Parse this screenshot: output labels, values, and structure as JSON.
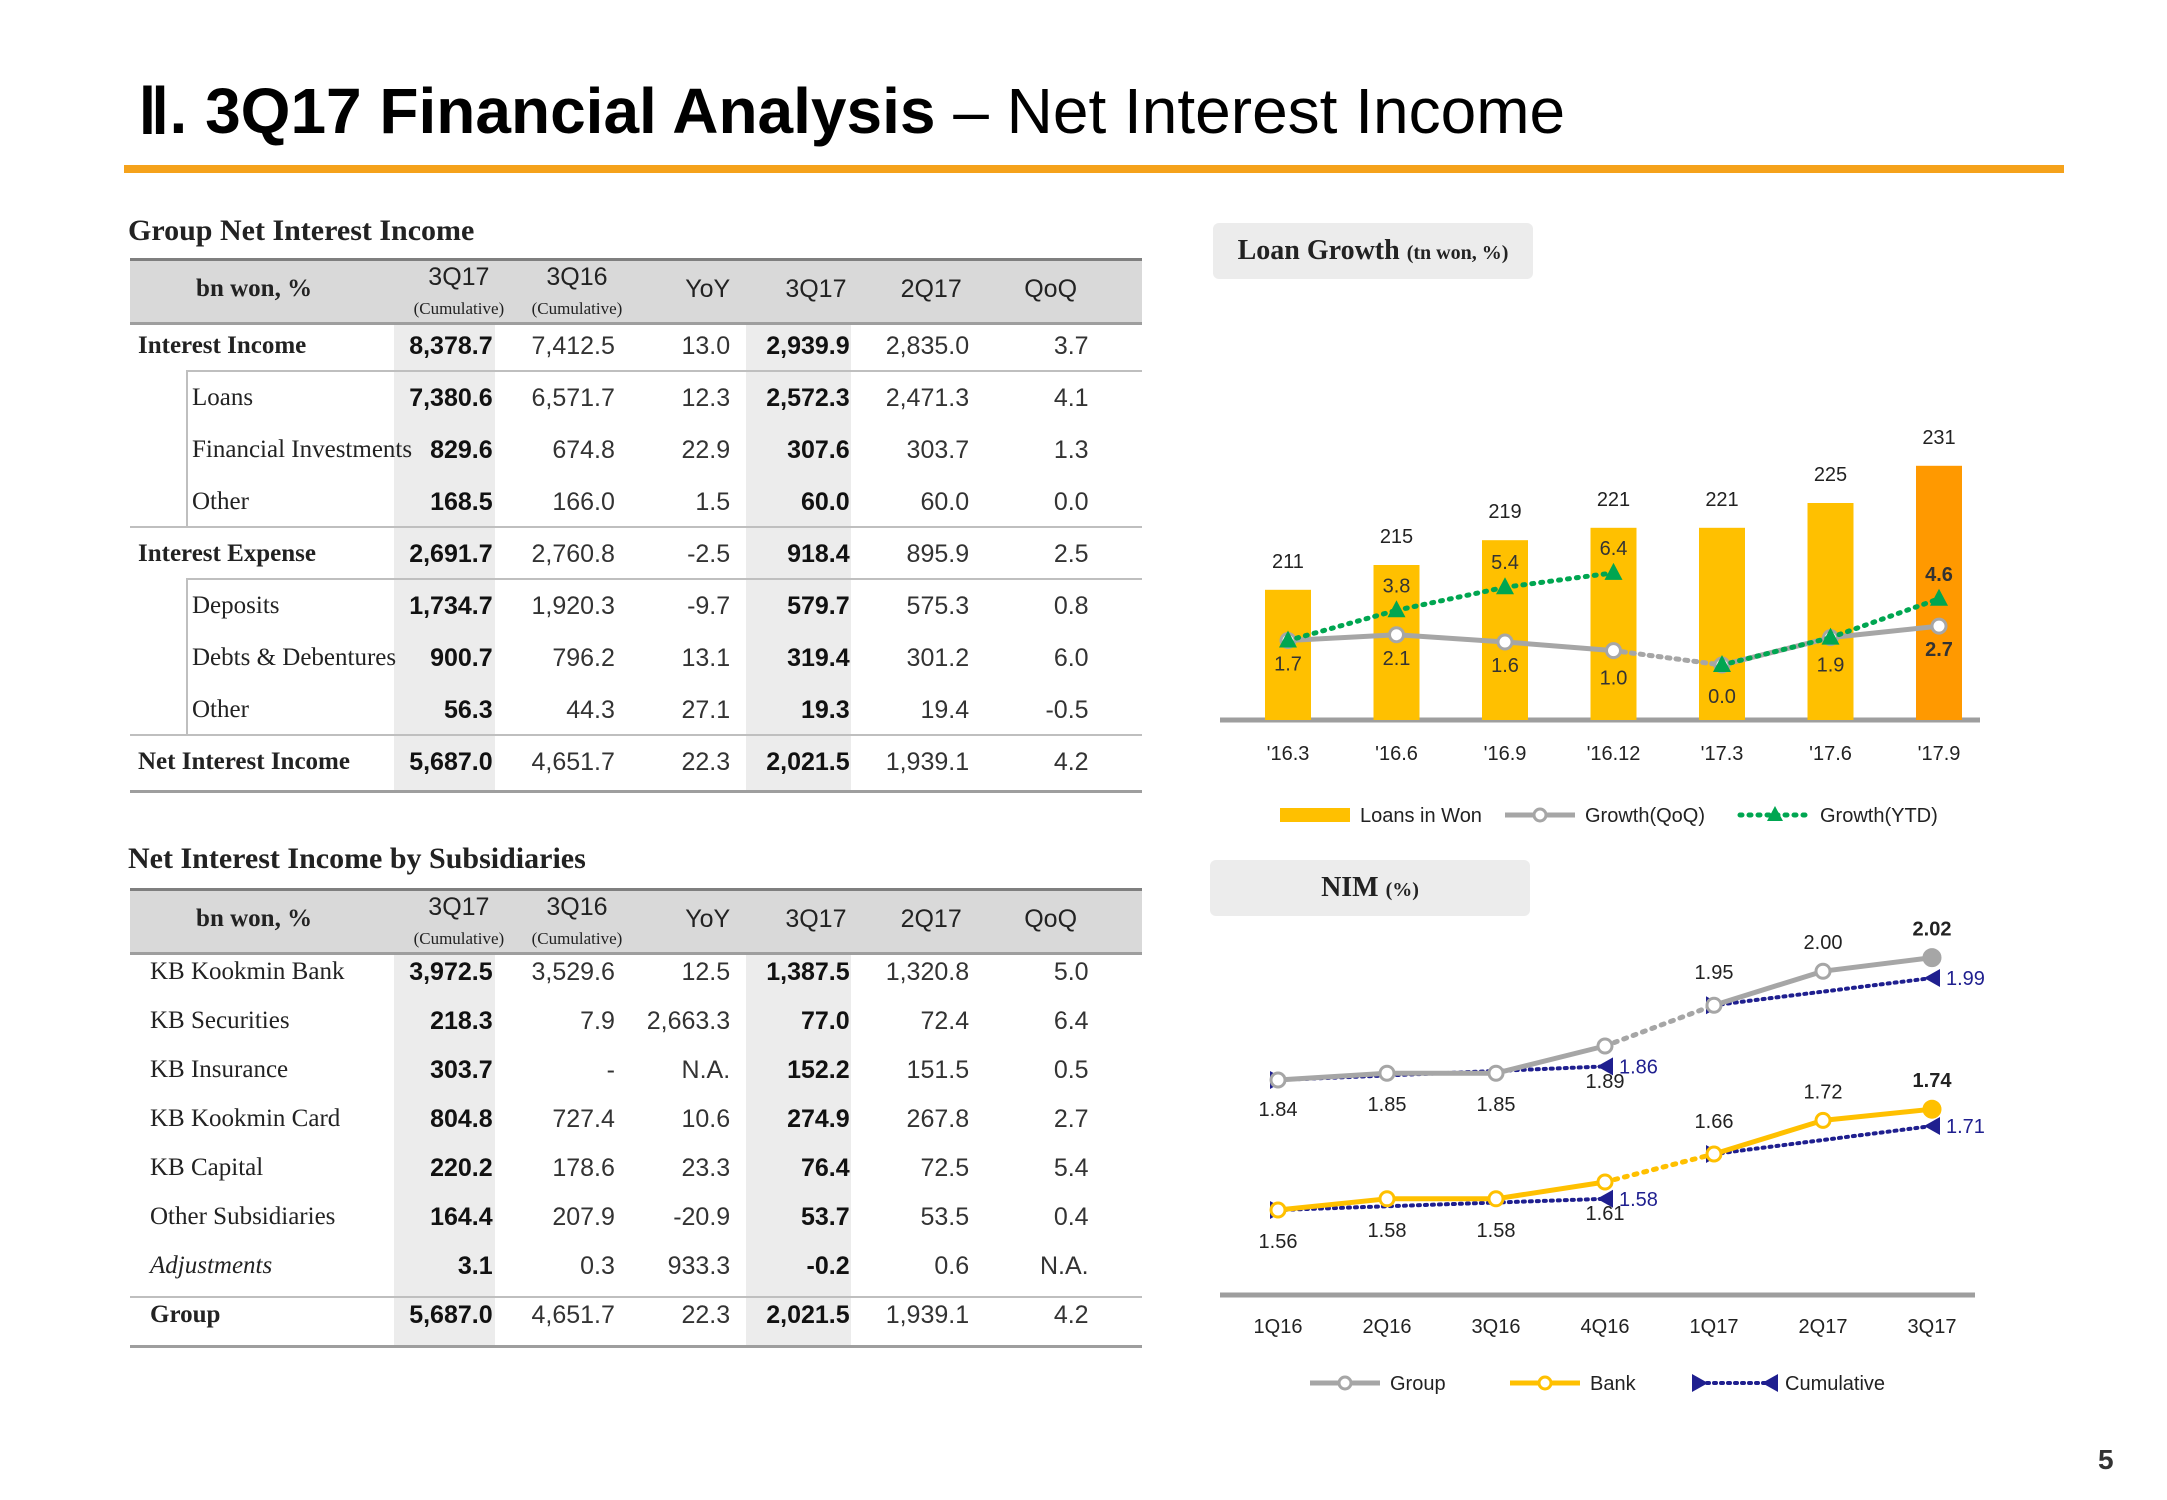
{
  "header": {
    "title_bold": "Ⅱ. 3Q17 Financial Analysis",
    "title_rest": " – Net Interest Income",
    "page_number": "5",
    "accent_color": "#f5a21b"
  },
  "group_nii": {
    "title": "Group Net Interest Income",
    "unit": "bn won, %",
    "columns": [
      "3Q17",
      "3Q16",
      "YoY",
      "3Q17",
      "2Q17",
      "QoQ"
    ],
    "column_notes": [
      "(Cumulative)",
      "(Cumulative)"
    ],
    "rows": [
      {
        "label": "Interest Income",
        "values": [
          "8,378.7",
          "7,412.5",
          "13.0",
          "2,939.9",
          "2,835.0",
          "3.7"
        ]
      },
      {
        "label": "Loans",
        "values": [
          "7,380.6",
          "6,571.7",
          "12.3",
          "2,572.3",
          "2,471.3",
          "4.1"
        ]
      },
      {
        "label": "Financial Investments",
        "values": [
          "829.6",
          "674.8",
          "22.9",
          "307.6",
          "303.7",
          "1.3"
        ]
      },
      {
        "label": "Other",
        "values": [
          "168.5",
          "166.0",
          "1.5",
          "60.0",
          "60.0",
          "0.0"
        ]
      },
      {
        "label": "Interest Expense",
        "values": [
          "2,691.7",
          "2,760.8",
          "-2.5",
          "918.4",
          "895.9",
          "2.5"
        ]
      },
      {
        "label": "Deposits",
        "values": [
          "1,734.7",
          "1,920.3",
          "-9.7",
          "579.7",
          "575.3",
          "0.8"
        ]
      },
      {
        "label": "Debts & Debentures",
        "values": [
          "900.7",
          "796.2",
          "13.1",
          "319.4",
          "301.2",
          "6.0"
        ]
      },
      {
        "label": "Other",
        "values": [
          "56.3",
          "44.3",
          "27.1",
          "19.3",
          "19.4",
          "-0.5"
        ]
      },
      {
        "label": "Net Interest Income",
        "values": [
          "5,687.0",
          "4,651.7",
          "22.3",
          "2,021.5",
          "1,939.1",
          "4.2"
        ]
      }
    ]
  },
  "subs_nii": {
    "title": "Net Interest Income by Subsidiaries",
    "unit": "bn won, %",
    "columns": [
      "3Q17",
      "3Q16",
      "YoY",
      "3Q17",
      "2Q17",
      "QoQ"
    ],
    "column_notes": [
      "(Cumulative)",
      "(Cumulative)"
    ],
    "rows": [
      {
        "label": "KB Kookmin Bank",
        "values": [
          "3,972.5",
          "3,529.6",
          "12.5",
          "1,387.5",
          "1,320.8",
          "5.0"
        ]
      },
      {
        "label": "KB Securities",
        "values": [
          "218.3",
          "7.9",
          "2,663.3",
          "77.0",
          "72.4",
          "6.4"
        ]
      },
      {
        "label": "KB Insurance",
        "values": [
          "303.7",
          "-",
          "N.A.",
          "152.2",
          "151.5",
          "0.5"
        ]
      },
      {
        "label": "KB Kookmin Card",
        "values": [
          "804.8",
          "727.4",
          "10.6",
          "274.9",
          "267.8",
          "2.7"
        ]
      },
      {
        "label": "KB Capital",
        "values": [
          "220.2",
          "178.6",
          "23.3",
          "76.4",
          "72.5",
          "5.4"
        ]
      },
      {
        "label": "Other Subsidiaries",
        "values": [
          "164.4",
          "207.9",
          "-20.9",
          "53.7",
          "53.5",
          "0.4"
        ]
      },
      {
        "label": "Adjustments",
        "values": [
          "3.1",
          "0.3",
          "933.3",
          "-0.2",
          "0.6",
          "N.A."
        ]
      },
      {
        "label": "Group",
        "values": [
          "5,687.0",
          "4,651.7",
          "22.3",
          "2,021.5",
          "1,939.1",
          "4.2"
        ]
      }
    ]
  },
  "chart_data": [
    {
      "type": "bar",
      "title": "Loan Growth",
      "unit": "(tn won, %)",
      "categories": [
        "'16.3",
        "'16.6",
        "'16.9",
        "'16.12",
        "'17.3",
        "'17.6",
        "'17.9"
      ],
      "series": [
        {
          "name": "Loans in Won",
          "type": "bar",
          "values": [
            211,
            215,
            219,
            221,
            221,
            225,
            231
          ],
          "color": "#ffc000",
          "highlight_color": "#ff9900"
        },
        {
          "name": "Growth(QoQ)",
          "type": "line",
          "values": [
            1.7,
            2.1,
            1.6,
            1.0,
            0.0,
            1.9,
            2.7
          ],
          "color": "#a6a6a6"
        },
        {
          "name": "Growth(YTD)",
          "type": "line",
          "values": [
            1.7,
            3.8,
            5.4,
            6.4,
            0.0,
            1.9,
            4.6
          ],
          "color": "#00a651"
        }
      ]
    },
    {
      "type": "line",
      "title": "NIM",
      "unit": "(%)",
      "categories": [
        "1Q16",
        "2Q16",
        "3Q16",
        "4Q16",
        "1Q17",
        "2Q17",
        "3Q17"
      ],
      "series": [
        {
          "name": "Group",
          "values": [
            1.84,
            1.85,
            1.85,
            1.89,
            1.95,
            2.0,
            2.02
          ],
          "color": "#a6a6a6"
        },
        {
          "name": "Bank",
          "values": [
            1.56,
            1.58,
            1.58,
            1.61,
            1.66,
            1.72,
            1.74
          ],
          "color": "#ffc000"
        },
        {
          "name": "Cumulative",
          "values": [
            1.84,
            null,
            null,
            1.86,
            1.95,
            null,
            1.99
          ],
          "color": "#1f1f8f"
        },
        {
          "name": "Cumulative (Bank)",
          "values": [
            1.56,
            null,
            null,
            1.58,
            1.66,
            null,
            1.71
          ],
          "color": "#1f1f8f"
        }
      ]
    }
  ]
}
